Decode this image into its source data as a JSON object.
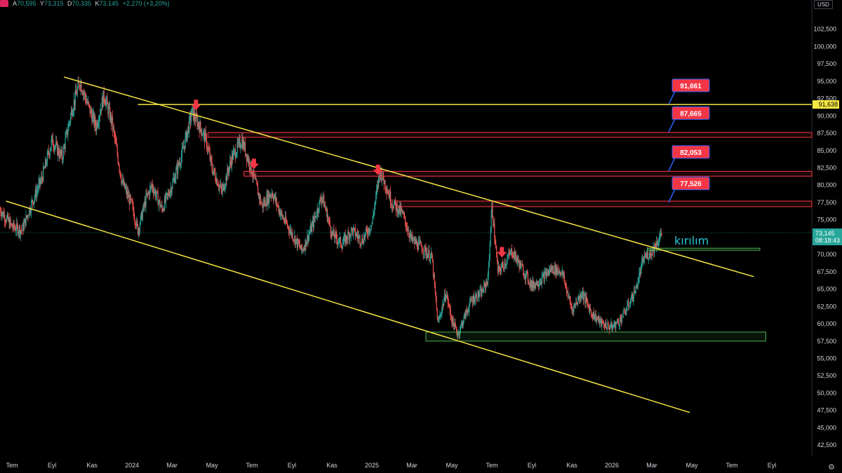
{
  "header": {
    "open_label": "A",
    "open": "70,595",
    "high_label": "Y",
    "high": "73,315",
    "low_label": "D",
    "low": "70,335",
    "close_label": "K",
    "close": "73,145",
    "change": "+2,270 (+3,20%)",
    "currency": "USD"
  },
  "colors": {
    "background": "#000000",
    "trendline": "#f5e642",
    "resistance_zone": "#f23645",
    "support_zone": "#4caf50",
    "up_candle": "#26a69a",
    "down_candle": "#ef5350",
    "callout": "#f23645",
    "break_label": "#26c6da"
  },
  "chart_data": {
    "type": "candlestick",
    "title": "",
    "y_ticks": [
      "102,500",
      "100,000",
      "97,500",
      "95,000",
      "92,500",
      "90,000",
      "87,500",
      "85,000",
      "82,500",
      "80,000",
      "77,500",
      "75,000",
      "72,500",
      "70,000",
      "67,500",
      "65,000",
      "62,500",
      "60,000",
      "57,500",
      "55,000",
      "52,500",
      "50,000",
      "47,500",
      "45,000",
      "42,500"
    ],
    "ylim": [
      41000,
      105500
    ],
    "x_ticks": [
      "Tem",
      "Eyl",
      "Kas",
      "2024",
      "Mar",
      "May",
      "Tem",
      "Eyl",
      "Kas",
      "2025",
      "Mar",
      "May",
      "Tem",
      "Eyl",
      "Kas",
      "2026",
      "Mar",
      "May",
      "Tem",
      "Eyl"
    ],
    "x_tick_months": [
      0,
      2,
      4,
      6,
      8,
      10,
      12,
      14,
      16,
      18,
      20,
      22,
      24,
      26,
      28,
      30,
      32,
      34,
      36,
      38
    ],
    "x_range_months": [
      -0.6,
      40.0
    ],
    "price_path": [
      [
        -0.6,
        76500
      ],
      [
        0,
        74000
      ],
      [
        0.5,
        73500
      ],
      [
        1,
        77500
      ],
      [
        1.5,
        81000
      ],
      [
        2,
        86500
      ],
      [
        2.5,
        84000
      ],
      [
        3,
        91000
      ],
      [
        3.4,
        95000
      ],
      [
        3.8,
        91500
      ],
      [
        4.2,
        88500
      ],
      [
        4.6,
        93000
      ],
      [
        5,
        89000
      ],
      [
        5.5,
        80500
      ],
      [
        6,
        77000
      ],
      [
        6.3,
        73500
      ],
      [
        6.7,
        78000
      ],
      [
        7,
        80000
      ],
      [
        7.5,
        76500
      ],
      [
        8,
        80000
      ],
      [
        8.5,
        84500
      ],
      [
        9,
        90500
      ],
      [
        9.3,
        89000
      ],
      [
        9.7,
        86500
      ],
      [
        10,
        82500
      ],
      [
        10.5,
        79000
      ],
      [
        11,
        84000
      ],
      [
        11.5,
        86500
      ],
      [
        12,
        82000
      ],
      [
        12.5,
        77000
      ],
      [
        13,
        79000
      ],
      [
        13.5,
        75500
      ],
      [
        14,
        73000
      ],
      [
        14.5,
        70500
      ],
      [
        15,
        74000
      ],
      [
        15.5,
        78500
      ],
      [
        16,
        73000
      ],
      [
        16.5,
        71500
      ],
      [
        17,
        73500
      ],
      [
        17.5,
        72000
      ],
      [
        18,
        74500
      ],
      [
        18.4,
        82000
      ],
      [
        18.7,
        80000
      ],
      [
        19,
        77500
      ],
      [
        19.5,
        76000
      ],
      [
        20,
        72000
      ],
      [
        20.5,
        71000
      ],
      [
        21,
        69500
      ],
      [
        21.3,
        60000
      ],
      [
        21.7,
        64500
      ],
      [
        22,
        60500
      ],
      [
        22.3,
        58500
      ],
      [
        22.7,
        61500
      ],
      [
        23,
        63500
      ],
      [
        23.5,
        64500
      ],
      [
        23.8,
        66500
      ],
      [
        24,
        77000
      ],
      [
        24.3,
        67500
      ],
      [
        24.7,
        69000
      ],
      [
        25,
        70500
      ],
      [
        25.5,
        68000
      ],
      [
        26,
        65500
      ],
      [
        26.5,
        66500
      ],
      [
        27,
        68000
      ],
      [
        27.5,
        67500
      ],
      [
        28,
        62000
      ],
      [
        28.5,
        64500
      ],
      [
        29,
        61500
      ],
      [
        29.5,
        60000
      ],
      [
        30,
        59500
      ],
      [
        30.4,
        60500
      ],
      [
        30.8,
        62500
      ],
      [
        31.2,
        65000
      ],
      [
        31.6,
        69500
      ],
      [
        32,
        70500
      ],
      [
        32.3,
        72000
      ],
      [
        32.5,
        73145
      ]
    ],
    "resistance_arrows_months": [
      9.2,
      12.1,
      18.3,
      24.5
    ],
    "levels": [
      {
        "label": "91,661",
        "value": 91661
      },
      {
        "label": "87,665",
        "value": 87665
      },
      {
        "label": "82,053",
        "value": 82053
      },
      {
        "label": "77,526",
        "value": 77526
      }
    ],
    "horizontal_line": {
      "label": "91,638",
      "value": 91638
    },
    "resistance_zones": [
      {
        "from_month": 9.8,
        "to_month": 40.0,
        "low": 86900,
        "high": 87600
      },
      {
        "from_month": 11.6,
        "to_month": 40.0,
        "low": 81300,
        "high": 82000
      },
      {
        "from_month": 19.2,
        "to_month": 40.0,
        "low": 76900,
        "high": 77700
      }
    ],
    "support_zones": [
      {
        "from_month": 20.7,
        "to_month": 37.7,
        "low": 57500,
        "high": 58800
      },
      {
        "from_month": 31.8,
        "to_month": 37.4,
        "low": 70600,
        "high": 70900
      }
    ],
    "channel_upper": [
      [
        2.6,
        95600
      ],
      [
        37.1,
        66800
      ]
    ],
    "channel_lower": [
      [
        -0.3,
        77700
      ],
      [
        33.9,
        47200
      ]
    ],
    "last_price": {
      "label": "73,145",
      "value": 73145,
      "countdown": "08:18:43"
    },
    "break_label": "kırılım"
  }
}
